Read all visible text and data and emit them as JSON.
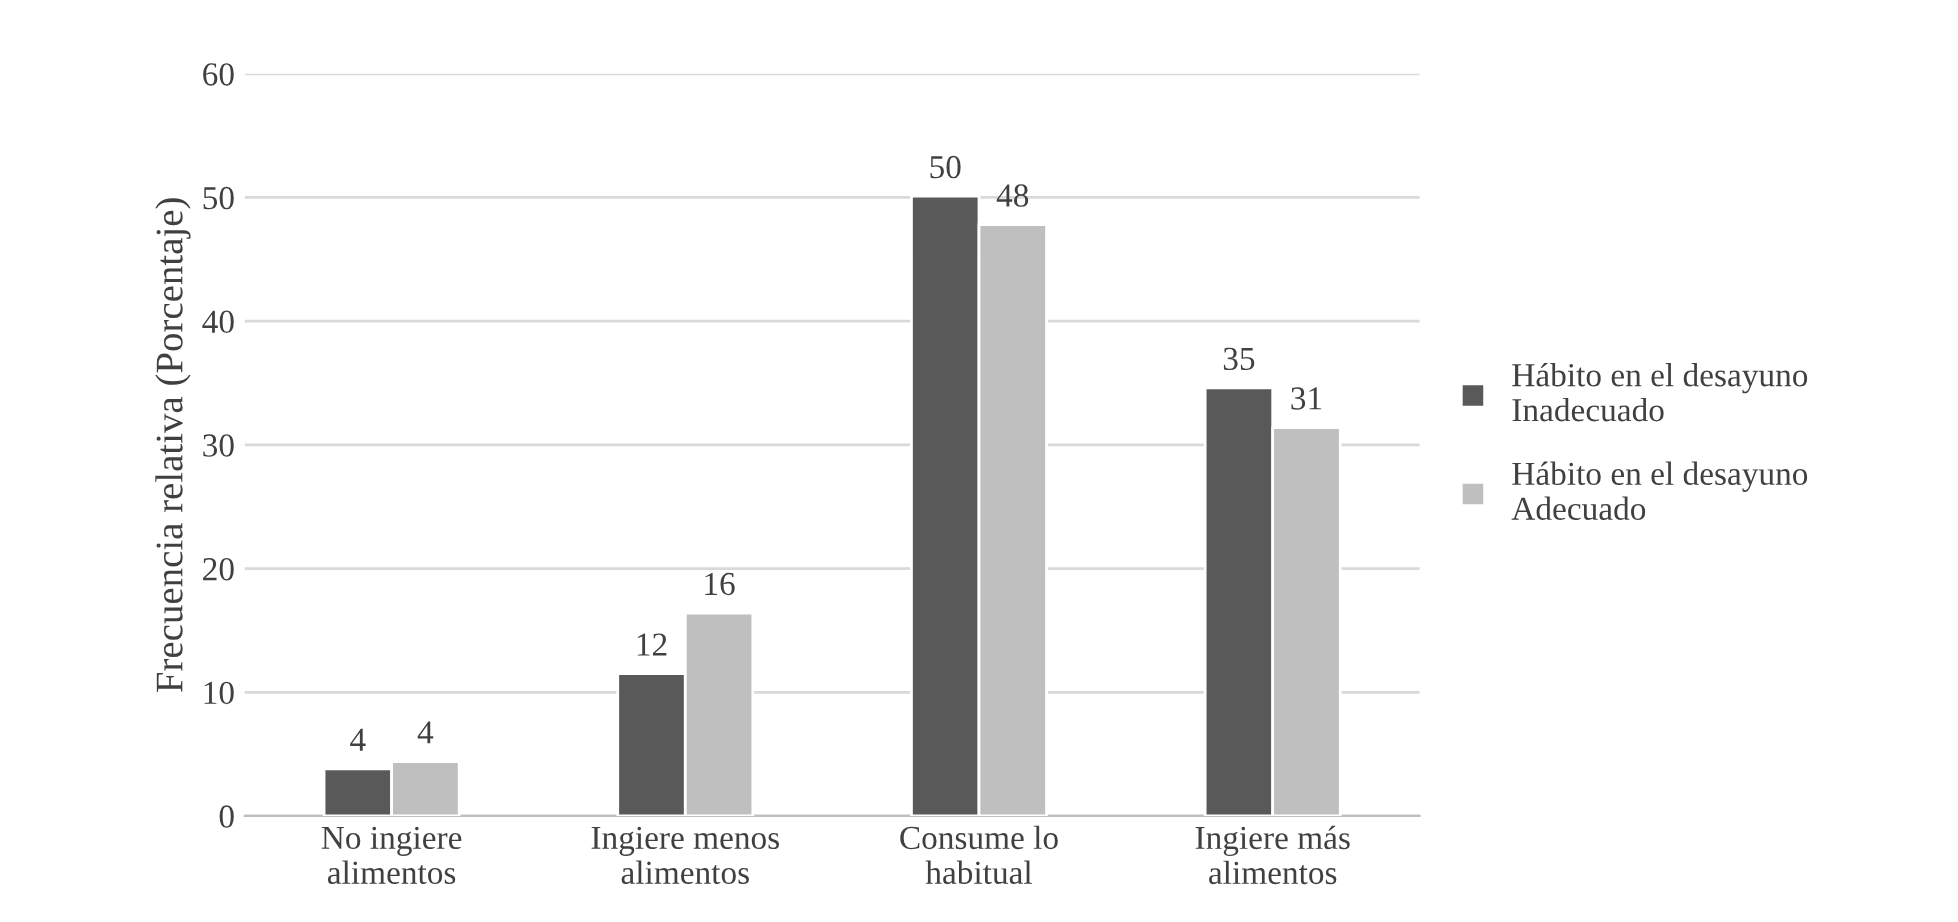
{
  "chart_data": {
    "type": "bar",
    "ylabel": "Frecuencia relativa (Porcentaje)",
    "categories": [
      "No ingiere\nalimentos",
      "Ingiere menos\nalimentos",
      "Consume lo\nhabitual",
      "Ingiere más\nalimentos"
    ],
    "series": [
      {
        "name": "Hábito en el desayuno\nInadecuado",
        "color": "#595959",
        "values": [
          3.8,
          11.5,
          50.1,
          34.6
        ],
        "value_labels": [
          "4",
          "12",
          "50",
          "35"
        ]
      },
      {
        "name": "Hábito en el desayuno\nAdecuado",
        "color": "#bfbfbf",
        "values": [
          4.4,
          16.4,
          47.8,
          31.4
        ],
        "value_labels": [
          "4",
          "16",
          "48",
          "31"
        ]
      }
    ],
    "ylim": [
      0,
      60
    ],
    "yticks": [
      0,
      10,
      20,
      30,
      40,
      50,
      60
    ],
    "grid": "y",
    "legend": "right"
  }
}
